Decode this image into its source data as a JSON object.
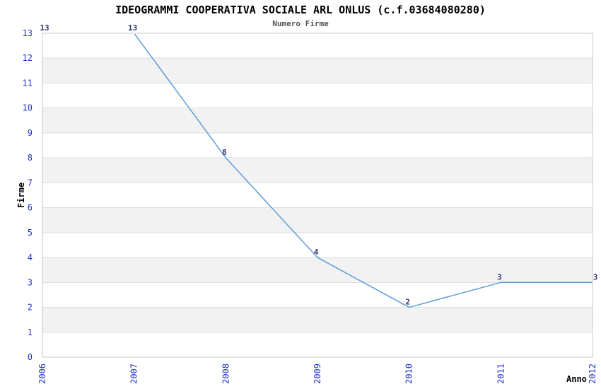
{
  "chart_data": {
    "type": "line",
    "title": "IDEOGRAMMI COOPERATIVA SOCIALE ARL ONLUS (c.f.03684080280)",
    "subtitle": "Numero Firme",
    "xlabel": "Anno",
    "ylabel": "Firme",
    "x": [
      "2006",
      "2007",
      "2008",
      "2009",
      "2010",
      "2011",
      "2012"
    ],
    "series": [
      {
        "name": "Firme",
        "values": [
          13,
          13,
          8,
          4,
          2,
          3,
          3
        ]
      }
    ],
    "data_labels": [
      "13",
      "13",
      "8",
      "4",
      "2",
      "3",
      "3"
    ],
    "ylim": [
      0,
      13
    ],
    "ytick_step": 1,
    "yticks": [
      "0",
      "1",
      "2",
      "3",
      "4",
      "5",
      "6",
      "7",
      "8",
      "9",
      "10",
      "11",
      "12",
      "13"
    ],
    "grid": "horizontal-bands-alternating",
    "legend": "none",
    "first_segment_hidden_at_top_clip": true,
    "colors": {
      "line": "#5e9bd9",
      "tick_label": "#2233cc",
      "data_label": "#333377",
      "band_fill": "#f2f2f2",
      "gridline": "#dfdfdf",
      "plot_border": "#c8c8c8",
      "background": "#ffffff",
      "title": "#000000",
      "subtitle": "#555555"
    }
  }
}
